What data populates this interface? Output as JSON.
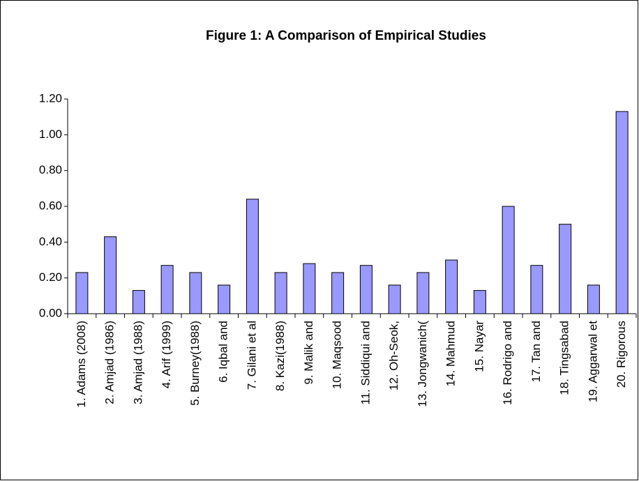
{
  "chart_data": {
    "type": "bar",
    "title": "Figure 1: A Comparison of Empirical Studies",
    "categories": [
      "1. Adams (2008)",
      "2. Amjad (1986)",
      "3. Amjad (1988)",
      "4. Arif (1999)",
      "5. Burney(1988)",
      "6. Iqbal and",
      "7. Gilani et al",
      "8. Kazi(1988)",
      "9. Malik and",
      "10. Maqsood",
      "11. Siddiqui and",
      "12. Oh-Seok,",
      "13. Jongwanich(",
      "14. Mahmud",
      "15. Nayar",
      "16. Rodrigo and",
      "17. Tan and",
      "18. Tingsabad",
      "19. Aggarwal et",
      "20. Rigorous"
    ],
    "values": [
      0.23,
      0.43,
      0.13,
      0.27,
      0.23,
      0.16,
      0.64,
      0.23,
      0.28,
      0.23,
      0.27,
      0.16,
      0.23,
      0.3,
      0.13,
      0.6,
      0.27,
      0.5,
      0.16,
      1.13
    ],
    "color": "#9999ff",
    "ylim": [
      0,
      1.2
    ],
    "yticks": [
      {
        "value": 0,
        "label": "0.00"
      },
      {
        "value": 0.2,
        "label": "0.20"
      },
      {
        "value": 0.4,
        "label": "0.40"
      },
      {
        "value": 0.6,
        "label": "0.60"
      },
      {
        "value": 0.8,
        "label": "0.80"
      },
      {
        "value": 1,
        "label": "1.00"
      },
      {
        "value": 1.2,
        "label": "1.20"
      }
    ],
    "grid": false
  }
}
